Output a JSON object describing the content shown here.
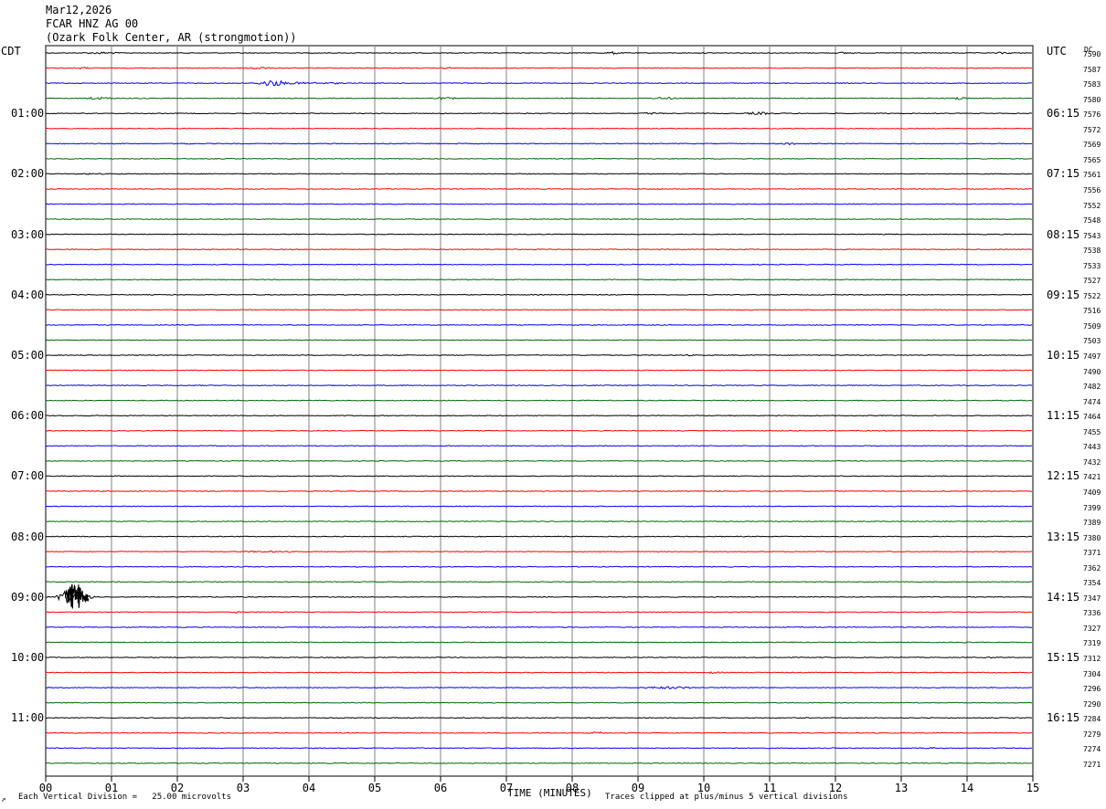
{
  "header": {
    "date": "Mar12,2026",
    "station": "FCAR HNZ AG 00",
    "location": "(Ozark Folk Center, AR (strongmotion))"
  },
  "left_timezone": "CDT",
  "right_timezone": "UTC",
  "right_column_label": "DC",
  "footer": {
    "corner": "↗",
    "scale_text": "Each Vertical Division =   25.00 microvolts",
    "clip_text": "Traces clipped at plus/minus 5 vertical divisions"
  },
  "colors": {
    "trace_cycle": [
      "#000000",
      "#ff0000",
      "#0000ff",
      "#006600"
    ],
    "grid": "#808080"
  },
  "chart_data": {
    "type": "line",
    "subtype": "helicorder",
    "title": "FCAR HNZ AG 00",
    "xlabel": "TIME (MINUTES)",
    "xlim": [
      0,
      15
    ],
    "x_ticks": [
      "00",
      "01",
      "02",
      "03",
      "04",
      "05",
      "06",
      "07",
      "08",
      "09",
      "10",
      "11",
      "12",
      "13",
      "14",
      "15"
    ],
    "left_hour_labels": [
      "01:00",
      "02:00",
      "03:00",
      "04:00",
      "05:00",
      "06:00",
      "07:00",
      "08:00",
      "09:00",
      "10:00",
      "11:00"
    ],
    "right_hour_labels": [
      "06:15",
      "07:15",
      "08:15",
      "09:15",
      "10:15",
      "11:15",
      "12:15",
      "13:15",
      "14:15",
      "15:15",
      "16:15"
    ],
    "rows_per_hour": 4,
    "row_dc_values": [
      "7590",
      "7587",
      "7583",
      "7580",
      "7576",
      "7572",
      "7569",
      "7565",
      "7561",
      "7556",
      "7552",
      "7548",
      "7543",
      "7538",
      "7533",
      "7527",
      "7522",
      "7516",
      "7509",
      "7503",
      "7497",
      "7490",
      "7482",
      "7474",
      "7464",
      "7455",
      "7443",
      "7432",
      "7421",
      "7409",
      "7399",
      "7389",
      "7380",
      "7371",
      "7362",
      "7354",
      "7347",
      "7336",
      "7327",
      "7319",
      "7312",
      "7304",
      "7296",
      "7290",
      "7284",
      "7279",
      "7274",
      "7271"
    ],
    "events": [
      {
        "row": 0,
        "start_min": 0.5,
        "end_min": 1.8,
        "amp_div": 0.4
      },
      {
        "row": 0,
        "start_min": 8.5,
        "end_min": 9.0,
        "amp_div": 0.5
      },
      {
        "row": 0,
        "start_min": 12.0,
        "end_min": 12.6,
        "amp_div": 0.4
      },
      {
        "row": 0,
        "start_min": 14.4,
        "end_min": 15.0,
        "amp_div": 0.4
      },
      {
        "row": 1,
        "start_min": 0.4,
        "end_min": 1.0,
        "amp_div": 0.35
      },
      {
        "row": 1,
        "start_min": 3.0,
        "end_min": 3.8,
        "amp_div": 0.5
      },
      {
        "row": 1,
        "start_min": 6.0,
        "end_min": 6.4,
        "amp_div": 0.4
      },
      {
        "row": 2,
        "start_min": 3.2,
        "end_min": 4.1,
        "amp_div": 1.2
      },
      {
        "row": 2,
        "start_min": 4.1,
        "end_min": 5.0,
        "amp_div": 0.3
      },
      {
        "row": 3,
        "start_min": 0.5,
        "end_min": 1.6,
        "amp_div": 0.5
      },
      {
        "row": 3,
        "start_min": 5.8,
        "end_min": 6.8,
        "amp_div": 0.4
      },
      {
        "row": 3,
        "start_min": 9.2,
        "end_min": 10.0,
        "amp_div": 0.45
      },
      {
        "row": 3,
        "start_min": 13.7,
        "end_min": 14.3,
        "amp_div": 0.55
      },
      {
        "row": 4,
        "start_min": 9.0,
        "end_min": 9.8,
        "amp_div": 0.4
      },
      {
        "row": 4,
        "start_min": 10.6,
        "end_min": 11.5,
        "amp_div": 0.5
      },
      {
        "row": 6,
        "start_min": 2.0,
        "end_min": 2.6,
        "amp_div": 0.3
      },
      {
        "row": 6,
        "start_min": 11.1,
        "end_min": 11.8,
        "amp_div": 0.45
      },
      {
        "row": 8,
        "start_min": 0.5,
        "end_min": 1.4,
        "amp_div": 0.25
      },
      {
        "row": 20,
        "start_min": 9.6,
        "end_min": 10.2,
        "amp_div": 0.25
      },
      {
        "row": 30,
        "start_min": 8.2,
        "end_min": 8.8,
        "amp_div": 0.25
      },
      {
        "row": 32,
        "start_min": 7.8,
        "end_min": 8.1,
        "amp_div": 0.3
      },
      {
        "row": 33,
        "start_min": 2.8,
        "end_min": 4.9,
        "amp_div": 0.3
      },
      {
        "row": 33,
        "start_min": 14.5,
        "end_min": 14.7,
        "amp_div": 0.35
      },
      {
        "row": 35,
        "start_min": 8.3,
        "end_min": 8.5,
        "amp_div": 0.25
      },
      {
        "row": 36,
        "start_min": 0.15,
        "end_min": 0.75,
        "amp_div": 2.5
      },
      {
        "row": 37,
        "start_min": 2.8,
        "end_min": 3.2,
        "amp_div": 0.35
      },
      {
        "row": 37,
        "start_min": 11.8,
        "end_min": 12.2,
        "amp_div": 0.3
      },
      {
        "row": 38,
        "start_min": 7.2,
        "end_min": 7.8,
        "amp_div": 0.25
      },
      {
        "row": 39,
        "start_min": 11.3,
        "end_min": 11.6,
        "amp_div": 0.25
      },
      {
        "row": 39,
        "start_min": 13.9,
        "end_min": 14.1,
        "amp_div": 0.3
      },
      {
        "row": 40,
        "start_min": 14.3,
        "end_min": 14.6,
        "amp_div": 0.35
      },
      {
        "row": 41,
        "start_min": 10.0,
        "end_min": 10.6,
        "amp_div": 0.4
      },
      {
        "row": 42,
        "start_min": 9.0,
        "end_min": 10.8,
        "amp_div": 0.45
      },
      {
        "row": 43,
        "start_min": 7.3,
        "end_min": 7.7,
        "amp_div": 0.25
      },
      {
        "row": 45,
        "start_min": 8.2,
        "end_min": 8.9,
        "amp_div": 0.4
      },
      {
        "row": 46,
        "start_min": 13.2,
        "end_min": 14.0,
        "amp_div": 0.3
      }
    ],
    "clipped_events": [
      {
        "row": 36,
        "start_min": 0.3,
        "end_min": 0.65,
        "up_div": 5,
        "down_div": 5
      }
    ],
    "noise_div": 0.12
  }
}
